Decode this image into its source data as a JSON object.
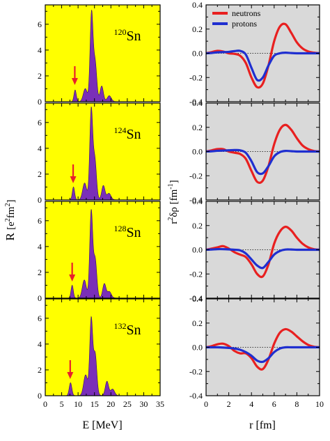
{
  "figure": {
    "left_ylabel_main": "R",
    "left_ylabel_unit": "[e",
    "left_ylabel_sup1": "2",
    "left_ylabel_unit2": "fm",
    "left_ylabel_sup2": "2",
    "left_ylabel_close": "]",
    "left_xlabel": "E [MeV]",
    "right_ylabel_r": "r",
    "right_ylabel_sup": "2",
    "right_ylabel_rest": "δρ [fm",
    "right_ylabel_sup2": "-1",
    "right_ylabel_close": "]",
    "right_xlabel": "r [fm]",
    "colors": {
      "left_bg": "#ffff00",
      "right_bg": "#d9d9d9",
      "strength_fill": "#7a2fb8",
      "arrow": "#e8202a",
      "neutrons": "#e82020",
      "protons": "#1f2fd0"
    }
  },
  "chart_data": [
    {
      "type": "area",
      "panel": "strength",
      "xlim": [
        0,
        35
      ],
      "ylim": [
        0,
        7.5
      ],
      "x_ticks": [
        0,
        5,
        10,
        15,
        20,
        25,
        30,
        35
      ],
      "y_ticks": [
        0,
        2,
        4,
        6
      ],
      "xlabel": "E [MeV]",
      "ylabel": "R [e2fm2]",
      "grid": false,
      "nuclei": [
        {
          "label_mass": "120",
          "label_elem": "Sn",
          "arrow_x": 9.0,
          "peaks": [
            {
              "x": 9.1,
              "h": 0.9,
              "w": 0.35
            },
            {
              "x": 12.2,
              "h": 1.0,
              "w": 0.6
            },
            {
              "x": 14.1,
              "h": 6.8,
              "w": 0.45
            },
            {
              "x": 15.2,
              "h": 3.0,
              "w": 0.5
            },
            {
              "x": 17.2,
              "h": 1.2,
              "w": 0.5
            },
            {
              "x": 19.5,
              "h": 0.45,
              "w": 0.6
            }
          ]
        },
        {
          "label_mass": "124",
          "label_elem": "Sn",
          "arrow_x": 8.5,
          "peaks": [
            {
              "x": 8.6,
              "h": 1.0,
              "w": 0.35
            },
            {
              "x": 12.0,
              "h": 1.3,
              "w": 0.6
            },
            {
              "x": 14.0,
              "h": 6.9,
              "w": 0.45
            },
            {
              "x": 15.1,
              "h": 3.1,
              "w": 0.5
            },
            {
              "x": 17.7,
              "h": 1.1,
              "w": 0.5
            },
            {
              "x": 19.4,
              "h": 0.5,
              "w": 0.6
            }
          ]
        },
        {
          "label_mass": "128",
          "label_elem": "Sn",
          "arrow_x": 8.2,
          "peaks": [
            {
              "x": 8.2,
              "h": 1.0,
              "w": 0.35
            },
            {
              "x": 11.9,
              "h": 1.4,
              "w": 0.6
            },
            {
              "x": 14.0,
              "h": 6.7,
              "w": 0.45
            },
            {
              "x": 15.2,
              "h": 3.0,
              "w": 0.5
            },
            {
              "x": 18.0,
              "h": 1.1,
              "w": 0.5
            },
            {
              "x": 19.5,
              "h": 0.5,
              "w": 0.6
            }
          ]
        },
        {
          "label_mass": "132",
          "label_elem": "Sn",
          "arrow_x": 7.6,
          "peaks": [
            {
              "x": 7.7,
              "h": 1.0,
              "w": 0.4
            },
            {
              "x": 12.3,
              "h": 1.6,
              "w": 0.6
            },
            {
              "x": 14.0,
              "h": 5.9,
              "w": 0.45
            },
            {
              "x": 15.2,
              "h": 3.2,
              "w": 0.5
            },
            {
              "x": 18.8,
              "h": 1.1,
              "w": 0.5
            },
            {
              "x": 20.5,
              "h": 0.5,
              "w": 0.6
            }
          ]
        }
      ]
    },
    {
      "type": "line",
      "panel": "transition_density",
      "xlim": [
        0,
        10
      ],
      "ylim": [
        -0.4,
        0.4
      ],
      "x_ticks": [
        0,
        2,
        4,
        6,
        8,
        10
      ],
      "y_ticks": [
        -0.4,
        -0.2,
        0.0,
        0.2,
        0.4
      ],
      "y_tick_labels": [
        "-0.4",
        "-0.2",
        "0.0",
        "0.2",
        "0.4"
      ],
      "xlabel": "r [fm]",
      "ylabel": "r2δρ [fm-1]",
      "legend": "top-right",
      "grid": false,
      "series": [
        {
          "name": "neutrons"
        },
        {
          "name": "protons"
        }
      ],
      "nuclei": [
        {
          "neutrons": {
            "x": [
              0,
              0.5,
              1,
              1.5,
              2,
              2.5,
              3,
              3.5,
              4,
              4.5,
              5,
              5.5,
              6,
              6.5,
              7,
              7.5,
              8,
              8.5,
              9,
              9.5,
              10
            ],
            "y": [
              0,
              0.01,
              0.02,
              0.015,
              0.0,
              -0.005,
              -0.02,
              -0.08,
              -0.2,
              -0.28,
              -0.25,
              -0.1,
              0.1,
              0.22,
              0.24,
              0.17,
              0.09,
              0.04,
              0.015,
              0.005,
              0.0
            ]
          },
          "protons": {
            "x": [
              0,
              0.5,
              1,
              1.5,
              2,
              2.5,
              3,
              3.5,
              4,
              4.5,
              5,
              5.5,
              6,
              6.5,
              7,
              7.5,
              8,
              8.5,
              9,
              9.5,
              10
            ],
            "y": [
              0,
              0.003,
              0.008,
              0.01,
              0.012,
              0.018,
              0.02,
              -0.01,
              -0.12,
              -0.22,
              -0.2,
              -0.1,
              -0.02,
              0.0,
              0.005,
              0.002,
              0.0,
              0.0,
              0.0,
              0.0,
              0.0
            ]
          }
        },
        {
          "neutrons": {
            "x": [
              0,
              0.5,
              1,
              1.5,
              2,
              2.5,
              3,
              3.5,
              4,
              4.5,
              5,
              5.5,
              6,
              6.5,
              7,
              7.5,
              8,
              8.5,
              9,
              9.5,
              10
            ],
            "y": [
              0,
              0.01,
              0.02,
              0.02,
              0.0,
              -0.01,
              -0.02,
              -0.06,
              -0.16,
              -0.25,
              -0.24,
              -0.12,
              0.06,
              0.18,
              0.22,
              0.18,
              0.11,
              0.05,
              0.02,
              0.005,
              0.0
            ]
          },
          "protons": {
            "x": [
              0,
              0.5,
              1,
              1.5,
              2,
              2.5,
              3,
              3.5,
              4,
              4.5,
              5,
              5.5,
              6,
              6.5,
              7,
              7.5,
              8,
              8.5,
              9,
              9.5,
              10
            ],
            "y": [
              0,
              0.002,
              0.006,
              0.008,
              0.01,
              0.012,
              0.01,
              -0.01,
              -0.08,
              -0.17,
              -0.18,
              -0.12,
              -0.04,
              -0.005,
              0.005,
              0.003,
              0.0,
              0.0,
              0.0,
              0.0,
              0.0
            ]
          }
        },
        {
          "neutrons": {
            "x": [
              0,
              0.5,
              1,
              1.5,
              2,
              2.5,
              3,
              3.5,
              4,
              4.5,
              5,
              5.5,
              6,
              6.5,
              7,
              7.5,
              8,
              8.5,
              9,
              9.5,
              10
            ],
            "y": [
              0,
              0.01,
              0.02,
              0.03,
              0.01,
              -0.02,
              -0.04,
              -0.06,
              -0.12,
              -0.2,
              -0.22,
              -0.12,
              0.05,
              0.15,
              0.19,
              0.16,
              0.1,
              0.05,
              0.02,
              0.005,
              0.0
            ]
          },
          "protons": {
            "x": [
              0,
              0.5,
              1,
              1.5,
              2,
              2.5,
              3,
              3.5,
              4,
              4.5,
              5,
              5.5,
              6,
              6.5,
              7,
              7.5,
              8,
              8.5,
              9,
              9.5,
              10
            ],
            "y": [
              0,
              0.002,
              0.005,
              0.005,
              0.003,
              0.0,
              -0.005,
              -0.03,
              -0.08,
              -0.13,
              -0.15,
              -0.1,
              -0.04,
              -0.01,
              0.002,
              0.002,
              0.0,
              0.0,
              0.0,
              0.0,
              0.0
            ]
          }
        },
        {
          "neutrons": {
            "x": [
              0,
              0.5,
              1,
              1.5,
              2,
              2.5,
              3,
              3.5,
              4,
              4.5,
              5,
              5.5,
              6,
              6.5,
              7,
              7.5,
              8,
              8.5,
              9,
              9.5,
              10
            ],
            "y": [
              0,
              0.01,
              0.025,
              0.03,
              0.01,
              -0.03,
              -0.05,
              -0.05,
              -0.09,
              -0.16,
              -0.18,
              -0.1,
              0.03,
              0.12,
              0.15,
              0.13,
              0.09,
              0.05,
              0.02,
              0.005,
              0.0
            ]
          },
          "protons": {
            "x": [
              0,
              0.5,
              1,
              1.5,
              2,
              2.5,
              3,
              3.5,
              4,
              4.5,
              5,
              5.5,
              6,
              6.5,
              7,
              7.5,
              8,
              8.5,
              9,
              9.5,
              10
            ],
            "y": [
              0,
              0.0,
              0.0,
              -0.002,
              -0.005,
              -0.01,
              -0.02,
              -0.04,
              -0.07,
              -0.11,
              -0.12,
              -0.09,
              -0.04,
              -0.01,
              0.0,
              0.0,
              0.0,
              0.0,
              0.0,
              0.0,
              0.0
            ]
          }
        }
      ]
    }
  ]
}
